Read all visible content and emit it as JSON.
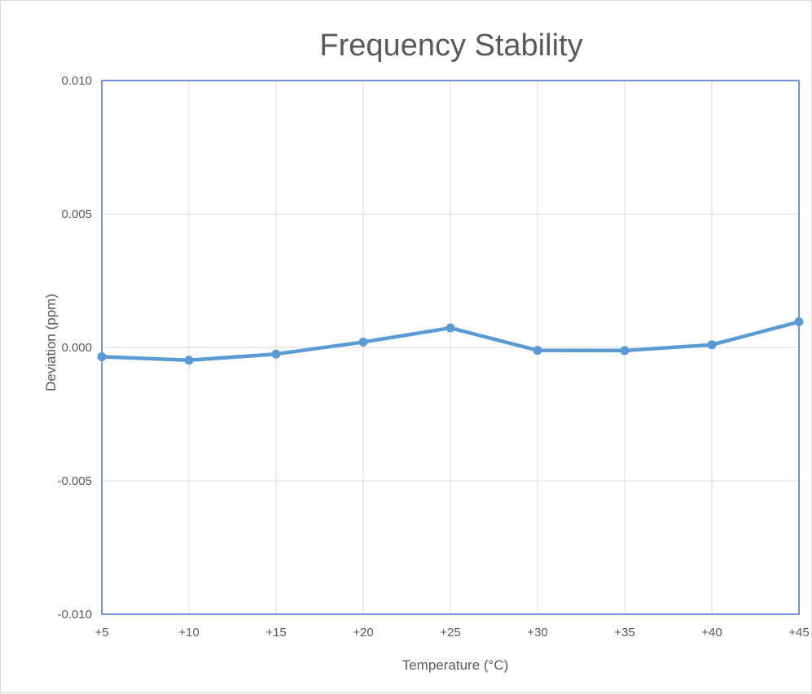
{
  "chart_data": {
    "type": "line",
    "title": "Frequency Stability",
    "xlabel": "Temperature (°C)",
    "ylabel": "Deviation (ppm)",
    "categories": [
      "+5",
      "+10",
      "+15",
      "+20",
      "+25",
      "+30",
      "+35",
      "+40",
      "+45"
    ],
    "series": [
      {
        "values": [
          -0.00035,
          -0.00048,
          -0.00025,
          0.0002,
          0.00073,
          -0.00011,
          -0.00012,
          0.0001,
          0.00096
        ]
      }
    ],
    "ylim": [
      -0.01,
      0.01
    ],
    "yticks": [
      0.01,
      0.005,
      0.0,
      -0.005,
      -0.01
    ],
    "ytick_labels": [
      "0.010",
      "0.005",
      "0.000",
      "-0.005",
      "-0.010"
    ],
    "grid": true,
    "legend": "none",
    "colors": {
      "series": "#5b9bd5",
      "plot_border": "#4472c4",
      "grid": "#d9d9d9",
      "text": "#595959"
    }
  }
}
